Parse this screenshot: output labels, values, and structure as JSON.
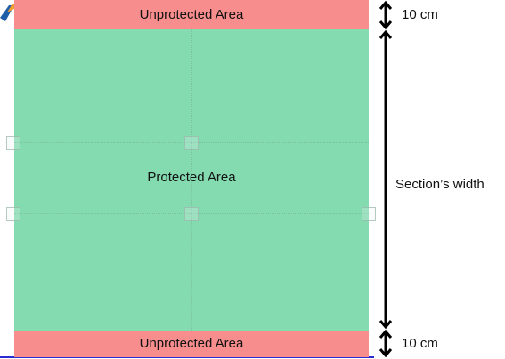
{
  "zones": {
    "top_label": "Unprotected Area",
    "middle_label": "Protected Area",
    "bottom_label": "Unprotected Area"
  },
  "dimensions": {
    "top": "10 cm",
    "middle": "Section’s width",
    "bottom": "10 cm"
  },
  "colors": {
    "unprotected": "#f78d8d",
    "protected": "#84dbb0",
    "arrow": "#000000"
  }
}
